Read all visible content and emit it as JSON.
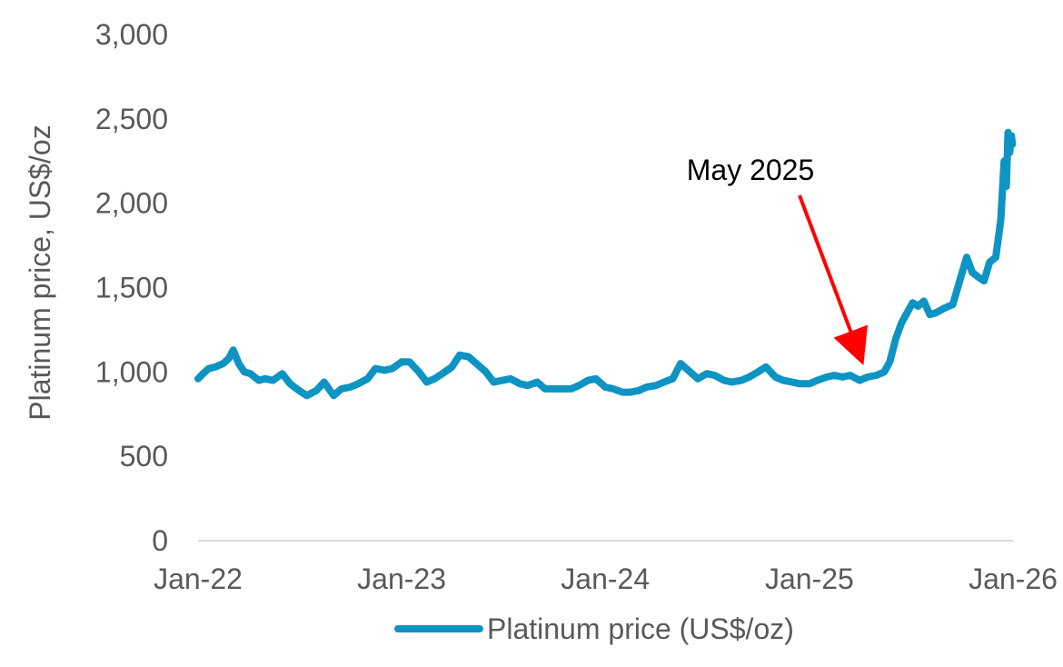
{
  "chart_data": {
    "type": "line",
    "title": "",
    "xlabel": "",
    "ylabel": "Platinum price, US$/oz",
    "ylim": [
      0,
      3000
    ],
    "xlim": [
      "2022-01-01",
      "2026-01-01"
    ],
    "y_ticks": [
      0,
      500,
      1000,
      1500,
      2000,
      2500,
      3000
    ],
    "y_tick_labels": [
      "0",
      "500",
      "1,000",
      "1,500",
      "2,000",
      "2,500",
      "3,000"
    ],
    "x_ticks": [
      "2022-01-01",
      "2023-01-01",
      "2024-01-01",
      "2025-01-01",
      "2026-01-01"
    ],
    "x_tick_labels": [
      "Jan-22",
      "Jan-23",
      "Jan-24",
      "Jan-25",
      "Jan-26"
    ],
    "grid": false,
    "legend_position": "bottom",
    "colors": {
      "series": "#0E94C3",
      "arrow": "#FF0000"
    },
    "annotation": {
      "text": "May 2025",
      "point": {
        "x": "2025-04-01",
        "y": 1100
      },
      "label_at": {
        "x": "2025-01-15",
        "y": 2200
      }
    },
    "series": [
      {
        "name": "Platinum price (US$/oz)",
        "points": [
          [
            "2022-01-01",
            960
          ],
          [
            "2022-01-10",
            990
          ],
          [
            "2022-01-20",
            1020
          ],
          [
            "2022-02-01",
            1030
          ],
          [
            "2022-02-15",
            1050
          ],
          [
            "2022-02-25",
            1080
          ],
          [
            "2022-03-05",
            1130
          ],
          [
            "2022-03-15",
            1050
          ],
          [
            "2022-03-25",
            1000
          ],
          [
            "2022-04-05",
            990
          ],
          [
            "2022-04-20",
            950
          ],
          [
            "2022-05-01",
            960
          ],
          [
            "2022-05-15",
            950
          ],
          [
            "2022-06-01",
            990
          ],
          [
            "2022-06-15",
            930
          ],
          [
            "2022-07-01",
            890
          ],
          [
            "2022-07-15",
            860
          ],
          [
            "2022-08-01",
            890
          ],
          [
            "2022-08-15",
            940
          ],
          [
            "2022-09-01",
            860
          ],
          [
            "2022-09-15",
            900
          ],
          [
            "2022-10-01",
            910
          ],
          [
            "2022-10-15",
            930
          ],
          [
            "2022-11-01",
            960
          ],
          [
            "2022-11-15",
            1020
          ],
          [
            "2022-12-01",
            1010
          ],
          [
            "2022-12-15",
            1020
          ],
          [
            "2023-01-01",
            1060
          ],
          [
            "2023-01-15",
            1060
          ],
          [
            "2023-02-01",
            1000
          ],
          [
            "2023-02-15",
            940
          ],
          [
            "2023-03-01",
            960
          ],
          [
            "2023-03-15",
            990
          ],
          [
            "2023-04-01",
            1030
          ],
          [
            "2023-04-15",
            1100
          ],
          [
            "2023-05-01",
            1090
          ],
          [
            "2023-05-15",
            1050
          ],
          [
            "2023-06-01",
            1000
          ],
          [
            "2023-06-15",
            940
          ],
          [
            "2023-07-01",
            950
          ],
          [
            "2023-07-15",
            960
          ],
          [
            "2023-08-01",
            930
          ],
          [
            "2023-08-15",
            920
          ],
          [
            "2023-09-01",
            940
          ],
          [
            "2023-09-15",
            900
          ],
          [
            "2023-10-01",
            900
          ],
          [
            "2023-10-15",
            900
          ],
          [
            "2023-11-01",
            900
          ],
          [
            "2023-11-15",
            920
          ],
          [
            "2023-12-01",
            950
          ],
          [
            "2023-12-15",
            960
          ],
          [
            "2024-01-01",
            910
          ],
          [
            "2024-01-15",
            900
          ],
          [
            "2024-02-01",
            880
          ],
          [
            "2024-02-15",
            880
          ],
          [
            "2024-03-01",
            890
          ],
          [
            "2024-03-15",
            910
          ],
          [
            "2024-04-01",
            920
          ],
          [
            "2024-04-15",
            940
          ],
          [
            "2024-05-01",
            960
          ],
          [
            "2024-05-15",
            1050
          ],
          [
            "2024-06-01",
            1000
          ],
          [
            "2024-06-15",
            960
          ],
          [
            "2024-07-01",
            990
          ],
          [
            "2024-07-15",
            980
          ],
          [
            "2024-08-01",
            950
          ],
          [
            "2024-08-15",
            940
          ],
          [
            "2024-09-01",
            950
          ],
          [
            "2024-09-15",
            970
          ],
          [
            "2024-10-01",
            1000
          ],
          [
            "2024-10-15",
            1030
          ],
          [
            "2024-11-01",
            970
          ],
          [
            "2024-11-15",
            950
          ],
          [
            "2024-12-01",
            940
          ],
          [
            "2024-12-15",
            930
          ],
          [
            "2025-01-01",
            930
          ],
          [
            "2025-01-15",
            950
          ],
          [
            "2025-02-01",
            970
          ],
          [
            "2025-02-15",
            980
          ],
          [
            "2025-03-01",
            970
          ],
          [
            "2025-03-15",
            980
          ],
          [
            "2025-04-01",
            950
          ],
          [
            "2025-04-15",
            970
          ],
          [
            "2025-05-01",
            980
          ],
          [
            "2025-05-15",
            1000
          ],
          [
            "2025-05-25",
            1060
          ],
          [
            "2025-06-05",
            1200
          ],
          [
            "2025-06-15",
            1290
          ],
          [
            "2025-06-25",
            1350
          ],
          [
            "2025-07-05",
            1410
          ],
          [
            "2025-07-15",
            1390
          ],
          [
            "2025-07-25",
            1420
          ],
          [
            "2025-08-05",
            1340
          ],
          [
            "2025-08-15",
            1350
          ],
          [
            "2025-09-01",
            1380
          ],
          [
            "2025-09-15",
            1400
          ],
          [
            "2025-10-01",
            1580
          ],
          [
            "2025-10-10",
            1680
          ],
          [
            "2025-10-20",
            1590
          ],
          [
            "2025-11-01",
            1560
          ],
          [
            "2025-11-10",
            1540
          ],
          [
            "2025-11-20",
            1650
          ],
          [
            "2025-12-01",
            1680
          ],
          [
            "2025-12-10",
            1900
          ],
          [
            "2025-12-16",
            2250
          ],
          [
            "2025-12-20",
            2100
          ],
          [
            "2025-12-23",
            2420
          ],
          [
            "2025-12-26",
            2300
          ],
          [
            "2025-12-29",
            2400
          ],
          [
            "2025-12-31",
            2350
          ]
        ]
      }
    ]
  }
}
